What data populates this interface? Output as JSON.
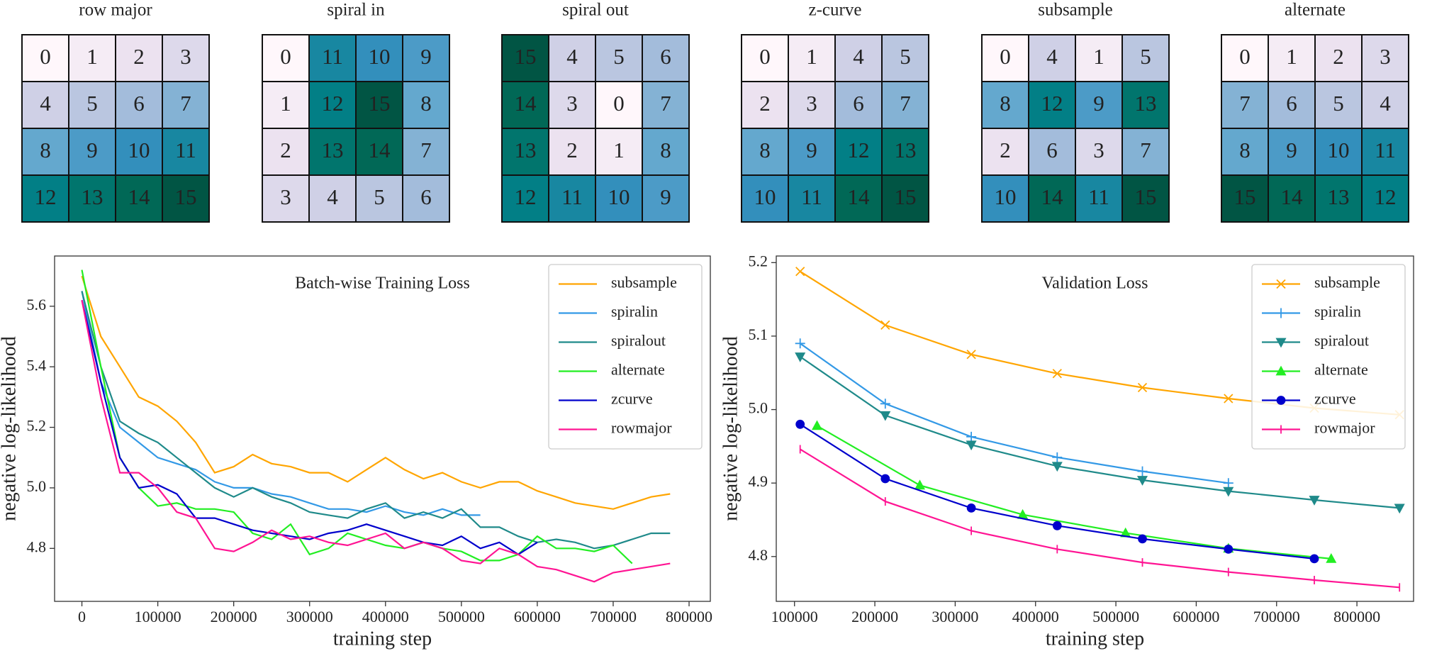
{
  "chart_data": [
    {
      "type": "heatmap",
      "title": "row major",
      "values": [
        [
          0,
          1,
          2,
          3
        ],
        [
          4,
          5,
          6,
          7
        ],
        [
          8,
          9,
          10,
          11
        ],
        [
          12,
          13,
          14,
          15
        ]
      ]
    },
    {
      "type": "heatmap",
      "title": "spiral in",
      "values": [
        [
          0,
          11,
          10,
          9
        ],
        [
          1,
          12,
          15,
          8
        ],
        [
          2,
          13,
          14,
          7
        ],
        [
          3,
          4,
          5,
          6
        ]
      ]
    },
    {
      "type": "heatmap",
      "title": "spiral out",
      "values": [
        [
          15,
          4,
          5,
          6
        ],
        [
          14,
          3,
          0,
          7
        ],
        [
          13,
          2,
          1,
          8
        ],
        [
          12,
          11,
          10,
          9
        ]
      ]
    },
    {
      "type": "heatmap",
      "title": "z-curve",
      "values": [
        [
          0,
          1,
          4,
          5
        ],
        [
          2,
          3,
          6,
          7
        ],
        [
          8,
          9,
          12,
          13
        ],
        [
          10,
          11,
          14,
          15
        ]
      ]
    },
    {
      "type": "heatmap",
      "title": "subsample",
      "values": [
        [
          0,
          4,
          1,
          5
        ],
        [
          8,
          12,
          9,
          13
        ],
        [
          2,
          6,
          3,
          7
        ],
        [
          10,
          14,
          11,
          15
        ]
      ]
    },
    {
      "type": "heatmap",
      "title": "alternate",
      "values": [
        [
          0,
          1,
          2,
          3
        ],
        [
          7,
          6,
          5,
          4
        ],
        [
          8,
          9,
          10,
          11
        ],
        [
          15,
          14,
          13,
          12
        ]
      ]
    },
    {
      "type": "line",
      "title": "Batch-wise Training Loss",
      "xlabel": "training step",
      "ylabel": "negative log-likelihood",
      "x": [
        0,
        25000,
        50000,
        75000,
        100000,
        125000,
        150000,
        175000,
        200000,
        225000,
        250000,
        275000,
        300000,
        325000,
        350000,
        375000,
        400000,
        425000,
        450000,
        475000,
        500000,
        525000,
        550000,
        575000,
        600000,
        625000,
        650000,
        675000,
        700000,
        725000,
        750000,
        775000
      ],
      "xlim": [
        -36000,
        828000
      ],
      "xticks": [
        0,
        100000,
        200000,
        300000,
        400000,
        500000,
        600000,
        700000,
        800000
      ],
      "ylim": [
        4.625,
        5.766
      ],
      "yticks": [
        4.8,
        {
          "value": 5,
          "label": "5.0"
        },
        5.2,
        5.4,
        5.6
      ],
      "grid": false,
      "legend": "upper right",
      "series": [
        {
          "name": "subsample",
          "color": "#ffa500",
          "values": [
            5.7,
            5.5,
            5.4,
            5.3,
            5.27,
            5.22,
            5.15,
            5.05,
            5.07,
            5.11,
            5.08,
            5.07,
            5.05,
            5.05,
            5.02,
            5.06,
            5.1,
            5.06,
            5.03,
            5.05,
            5.02,
            5.0,
            5.02,
            5.02,
            4.99,
            4.97,
            4.95,
            4.94,
            4.93,
            4.95,
            4.97,
            4.98
          ]
        },
        {
          "name": "spiralin",
          "color": "#3399e6",
          "values": [
            5.65,
            5.35,
            5.2,
            5.15,
            5.1,
            5.08,
            5.06,
            5.02,
            5.0,
            5.0,
            4.98,
            4.97,
            4.95,
            4.93,
            4.93,
            4.92,
            4.94,
            4.92,
            4.91,
            4.93,
            4.91,
            4.91,
            null,
            null,
            null,
            null,
            null,
            null,
            null,
            null,
            null,
            null
          ]
        },
        {
          "name": "spiralout",
          "color": "#1f8a8a",
          "values": [
            5.65,
            5.4,
            5.22,
            5.18,
            5.15,
            5.1,
            5.05,
            5.0,
            4.97,
            5.0,
            4.97,
            4.95,
            4.92,
            4.91,
            4.9,
            4.93,
            4.95,
            4.9,
            4.92,
            4.9,
            4.93,
            4.87,
            4.87,
            4.84,
            4.82,
            4.83,
            4.82,
            4.8,
            4.81,
            4.83,
            4.85,
            4.85
          ]
        },
        {
          "name": "alternate",
          "color": "#22ee22",
          "values": [
            5.72,
            5.4,
            5.1,
            5.0,
            4.94,
            4.95,
            4.93,
            4.93,
            4.92,
            4.85,
            4.83,
            4.88,
            4.78,
            4.8,
            4.85,
            4.83,
            4.81,
            4.8,
            4.82,
            4.8,
            4.79,
            4.76,
            4.76,
            4.78,
            4.84,
            4.8,
            4.8,
            4.79,
            4.81,
            4.75,
            null,
            null
          ]
        },
        {
          "name": "zcurve",
          "color": "#0000cc",
          "values": [
            5.62,
            5.35,
            5.1,
            5.0,
            5.01,
            4.98,
            4.9,
            4.9,
            4.88,
            4.86,
            4.85,
            4.84,
            4.83,
            4.85,
            4.86,
            4.88,
            4.86,
            4.84,
            4.82,
            4.81,
            4.84,
            4.8,
            4.82,
            4.78,
            4.82,
            null,
            null,
            null,
            null,
            null,
            null,
            null
          ]
        },
        {
          "name": "rowmajor",
          "color": "#ff1493",
          "values": [
            5.62,
            5.3,
            5.05,
            5.05,
            5.0,
            4.92,
            4.9,
            4.8,
            4.79,
            4.82,
            4.86,
            4.83,
            4.84,
            4.82,
            4.81,
            4.83,
            4.85,
            4.8,
            4.82,
            4.8,
            4.76,
            4.75,
            4.8,
            4.78,
            4.74,
            4.73,
            4.71,
            4.69,
            4.72,
            4.73,
            4.74,
            4.75
          ]
        }
      ]
    },
    {
      "type": "line",
      "title": "Validation Loss",
      "xlabel": "training step",
      "ylabel": "negative log-likelihood",
      "xlim": [
        77300,
        870500
      ],
      "xticks": [
        100000,
        200000,
        300000,
        400000,
        500000,
        600000,
        700000,
        800000
      ],
      "ylim": [
        4.739,
        5.209
      ],
      "yticks": [
        4.8,
        4.9,
        {
          "value": 5,
          "label": "5.0"
        },
        5.1,
        5.2
      ],
      "grid": false,
      "legend": "upper right",
      "series": [
        {
          "name": "subsample",
          "color": "#ffa500",
          "marker": "x",
          "x": [
            107000,
            213000,
            320000,
            427000,
            533000,
            640000,
            747000,
            853000
          ],
          "values": [
            5.188,
            5.115,
            5.075,
            5.049,
            5.03,
            5.015,
            5.002,
            4.993
          ]
        },
        {
          "name": "spiralin",
          "color": "#3399e6",
          "marker": "+",
          "x": [
            107000,
            213000,
            320000,
            427000,
            533000,
            640000
          ],
          "values": [
            5.09,
            5.008,
            4.963,
            4.935,
            4.916,
            4.9
          ]
        },
        {
          "name": "spiralout",
          "color": "#1f8a8a",
          "marker": "v",
          "x": [
            107000,
            213000,
            320000,
            427000,
            533000,
            640000,
            747000,
            853000
          ],
          "values": [
            5.072,
            4.992,
            4.952,
            4.923,
            4.904,
            4.889,
            4.877,
            4.866
          ]
        },
        {
          "name": "alternate",
          "color": "#22ee22",
          "marker": "^",
          "x": [
            128000,
            256000,
            384000,
            512000,
            640000,
            768000
          ],
          "values": [
            4.978,
            4.897,
            4.857,
            4.832,
            4.811,
            4.797
          ]
        },
        {
          "name": "zcurve",
          "color": "#0000cc",
          "marker": "o",
          "x": [
            107000,
            213000,
            320000,
            427000,
            533000,
            640000,
            747000
          ],
          "values": [
            4.98,
            4.906,
            4.866,
            4.842,
            4.824,
            4.81,
            4.797
          ]
        },
        {
          "name": "rowmajor",
          "color": "#ff1493",
          "marker": "|",
          "x": [
            107000,
            213000,
            320000,
            427000,
            533000,
            640000,
            747000,
            853000
          ],
          "values": [
            4.946,
            4.875,
            4.835,
            4.81,
            4.792,
            4.779,
            4.768,
            4.758
          ]
        }
      ]
    }
  ]
}
